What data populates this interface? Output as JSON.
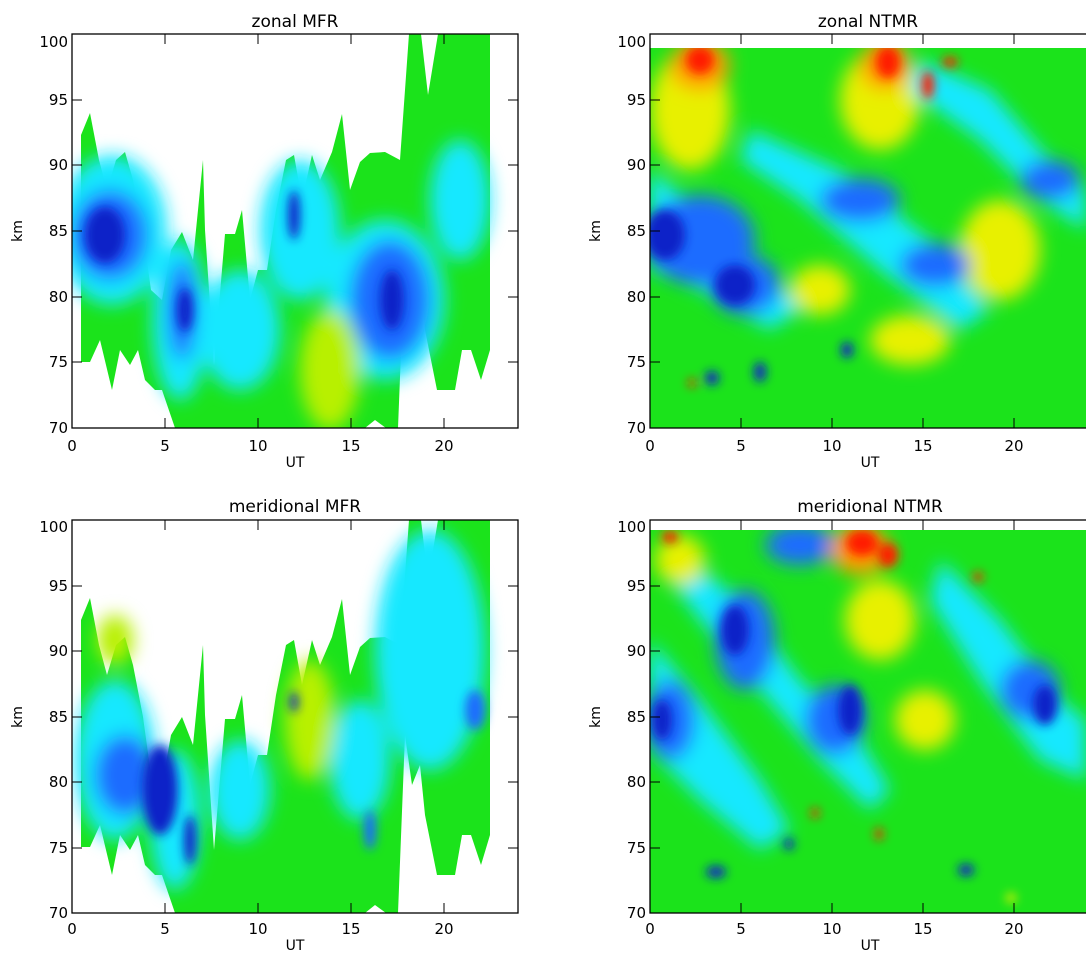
{
  "chart_data": [
    {
      "type": "heatmap",
      "title": "zonal MFR",
      "xlabel": "UT",
      "ylabel": "km",
      "xlim": [
        0,
        24
      ],
      "ylim": [
        70,
        100
      ],
      "xticks": [
        "0",
        "5",
        "10",
        "15",
        "20"
      ],
      "yticks": [
        "70",
        "75",
        "80",
        "85",
        "90",
        "95",
        "100"
      ],
      "colors": {
        "dark_blue": "#1020c8",
        "blue": "#1a6cff",
        "cyan": "#18e8ff",
        "green": "#1be31b",
        "yellow_green": "#b8f000"
      },
      "dominant_features": [
        {
          "ut": 1.2,
          "km": 85,
          "level": "dark_blue"
        },
        {
          "ut": 12,
          "km": 86,
          "level": "dark_blue"
        },
        {
          "ut": 17.5,
          "km": 80,
          "level": "dark_blue"
        },
        {
          "ut": 14.5,
          "km": 76,
          "level": "yellow_green"
        }
      ]
    },
    {
      "type": "heatmap",
      "title": "zonal NTMR",
      "xlabel": "UT",
      "ylabel": "km",
      "xlim": [
        0,
        24
      ],
      "ylim": [
        70,
        100
      ],
      "xticks": [
        "0",
        "5",
        "10",
        "15",
        "20"
      ],
      "yticks": [
        "70",
        "75",
        "80",
        "85",
        "90",
        "95",
        "100"
      ],
      "colors": {
        "dark_blue": "#1020c8",
        "blue": "#1a6cff",
        "cyan": "#18e8ff",
        "green": "#1be31b",
        "yellow": "#e8f000",
        "orange": "#ff9a00",
        "red": "#ff1a00"
      },
      "dominant_features": [
        {
          "ut": 4.5,
          "km": 81,
          "level": "dark_blue"
        },
        {
          "ut": 0.5,
          "km": 85,
          "level": "dark_blue"
        },
        {
          "ut": 3.5,
          "km": 98.5,
          "level": "red"
        },
        {
          "ut": 12.5,
          "km": 98.5,
          "level": "red"
        }
      ]
    },
    {
      "type": "heatmap",
      "title": "meridional MFR",
      "xlabel": "UT",
      "ylabel": "km",
      "xlim": [
        0,
        24
      ],
      "ylim": [
        70,
        100
      ],
      "xticks": [
        "0",
        "5",
        "10",
        "15",
        "20"
      ],
      "yticks": [
        "70",
        "75",
        "80",
        "85",
        "90",
        "95",
        "100"
      ],
      "colors": {
        "dark_blue": "#1020c8",
        "blue": "#1a6cff",
        "cyan": "#18e8ff",
        "green": "#1be31b",
        "yellow_green": "#b8f000"
      },
      "dominant_features": [
        {
          "ut": 5.2,
          "km": 77,
          "level": "dark_blue"
        },
        {
          "ut": 1,
          "km": 82,
          "level": "blue"
        },
        {
          "ut": 22,
          "km": 85,
          "level": "blue"
        }
      ]
    },
    {
      "type": "heatmap",
      "title": "meridional NTMR",
      "xlabel": "UT",
      "ylabel": "km",
      "xlim": [
        0,
        24
      ],
      "ylim": [
        70,
        100
      ],
      "xticks": [
        "0",
        "5",
        "10",
        "15",
        "20"
      ],
      "yticks": [
        "70",
        "75",
        "80",
        "85",
        "90",
        "95",
        "100"
      ],
      "colors": {
        "dark_blue": "#1020c8",
        "blue": "#1a6cff",
        "cyan": "#18e8ff",
        "green": "#1be31b",
        "yellow": "#e8f000",
        "orange": "#ff9a00",
        "red": "#ff1a00"
      },
      "dominant_features": [
        {
          "ut": 5,
          "km": 92,
          "level": "dark_blue"
        },
        {
          "ut": 11,
          "km": 83,
          "level": "dark_blue"
        },
        {
          "ut": 12,
          "km": 98.5,
          "level": "red"
        },
        {
          "ut": 3.5,
          "km": 72.5,
          "level": "dark_blue"
        }
      ]
    }
  ]
}
